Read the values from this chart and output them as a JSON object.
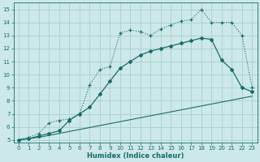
{
  "xlabel": "Humidex (Indice chaleur)",
  "ylabel": "",
  "xlim": [
    -0.5,
    23.5
  ],
  "ylim": [
    4.8,
    15.5
  ],
  "xticks": [
    0,
    1,
    2,
    3,
    4,
    5,
    6,
    7,
    8,
    9,
    10,
    11,
    12,
    13,
    14,
    15,
    16,
    17,
    18,
    19,
    20,
    21,
    22,
    23
  ],
  "yticks": [
    5,
    6,
    7,
    8,
    9,
    10,
    11,
    12,
    13,
    14,
    15
  ],
  "bg_color": "#cce8e8",
  "grid_color": "#a8d0d0",
  "line_color": "#1a6b6b",
  "line1_x": [
    0,
    1,
    2,
    3,
    4,
    5,
    6,
    7,
    8,
    9,
    10,
    11,
    12,
    13,
    14,
    15,
    16,
    17,
    18,
    19,
    20,
    21,
    22,
    23
  ],
  "line1_y": [
    5.0,
    5.1,
    5.2,
    5.35,
    5.5,
    5.65,
    5.8,
    5.95,
    6.1,
    6.25,
    6.4,
    6.55,
    6.7,
    6.85,
    7.0,
    7.15,
    7.3,
    7.45,
    7.6,
    7.75,
    7.9,
    8.05,
    8.2,
    8.35
  ],
  "line2_x": [
    0,
    1,
    2,
    3,
    4,
    5,
    6,
    7,
    8,
    9,
    10,
    11,
    12,
    13,
    14,
    15,
    16,
    17,
    18,
    19,
    20,
    21,
    22,
    23
  ],
  "line2_y": [
    5.0,
    5.1,
    5.3,
    5.5,
    5.7,
    6.5,
    7.0,
    7.5,
    8.5,
    9.5,
    10.5,
    11.0,
    11.5,
    11.8,
    12.0,
    12.2,
    12.4,
    12.6,
    12.8,
    12.7,
    11.1,
    10.4,
    9.0,
    8.7
  ],
  "line3_x": [
    0,
    1,
    2,
    3,
    4,
    5,
    6,
    7,
    8,
    9,
    10,
    11,
    12,
    13,
    14,
    15,
    16,
    17,
    18,
    19,
    20,
    21,
    22,
    23
  ],
  "line3_y": [
    5.0,
    5.2,
    5.5,
    6.3,
    6.5,
    6.6,
    7.0,
    9.2,
    10.4,
    10.6,
    13.2,
    13.4,
    13.3,
    13.0,
    13.5,
    13.8,
    14.1,
    14.2,
    15.0,
    14.0,
    14.0,
    14.0,
    13.0,
    9.0
  ]
}
